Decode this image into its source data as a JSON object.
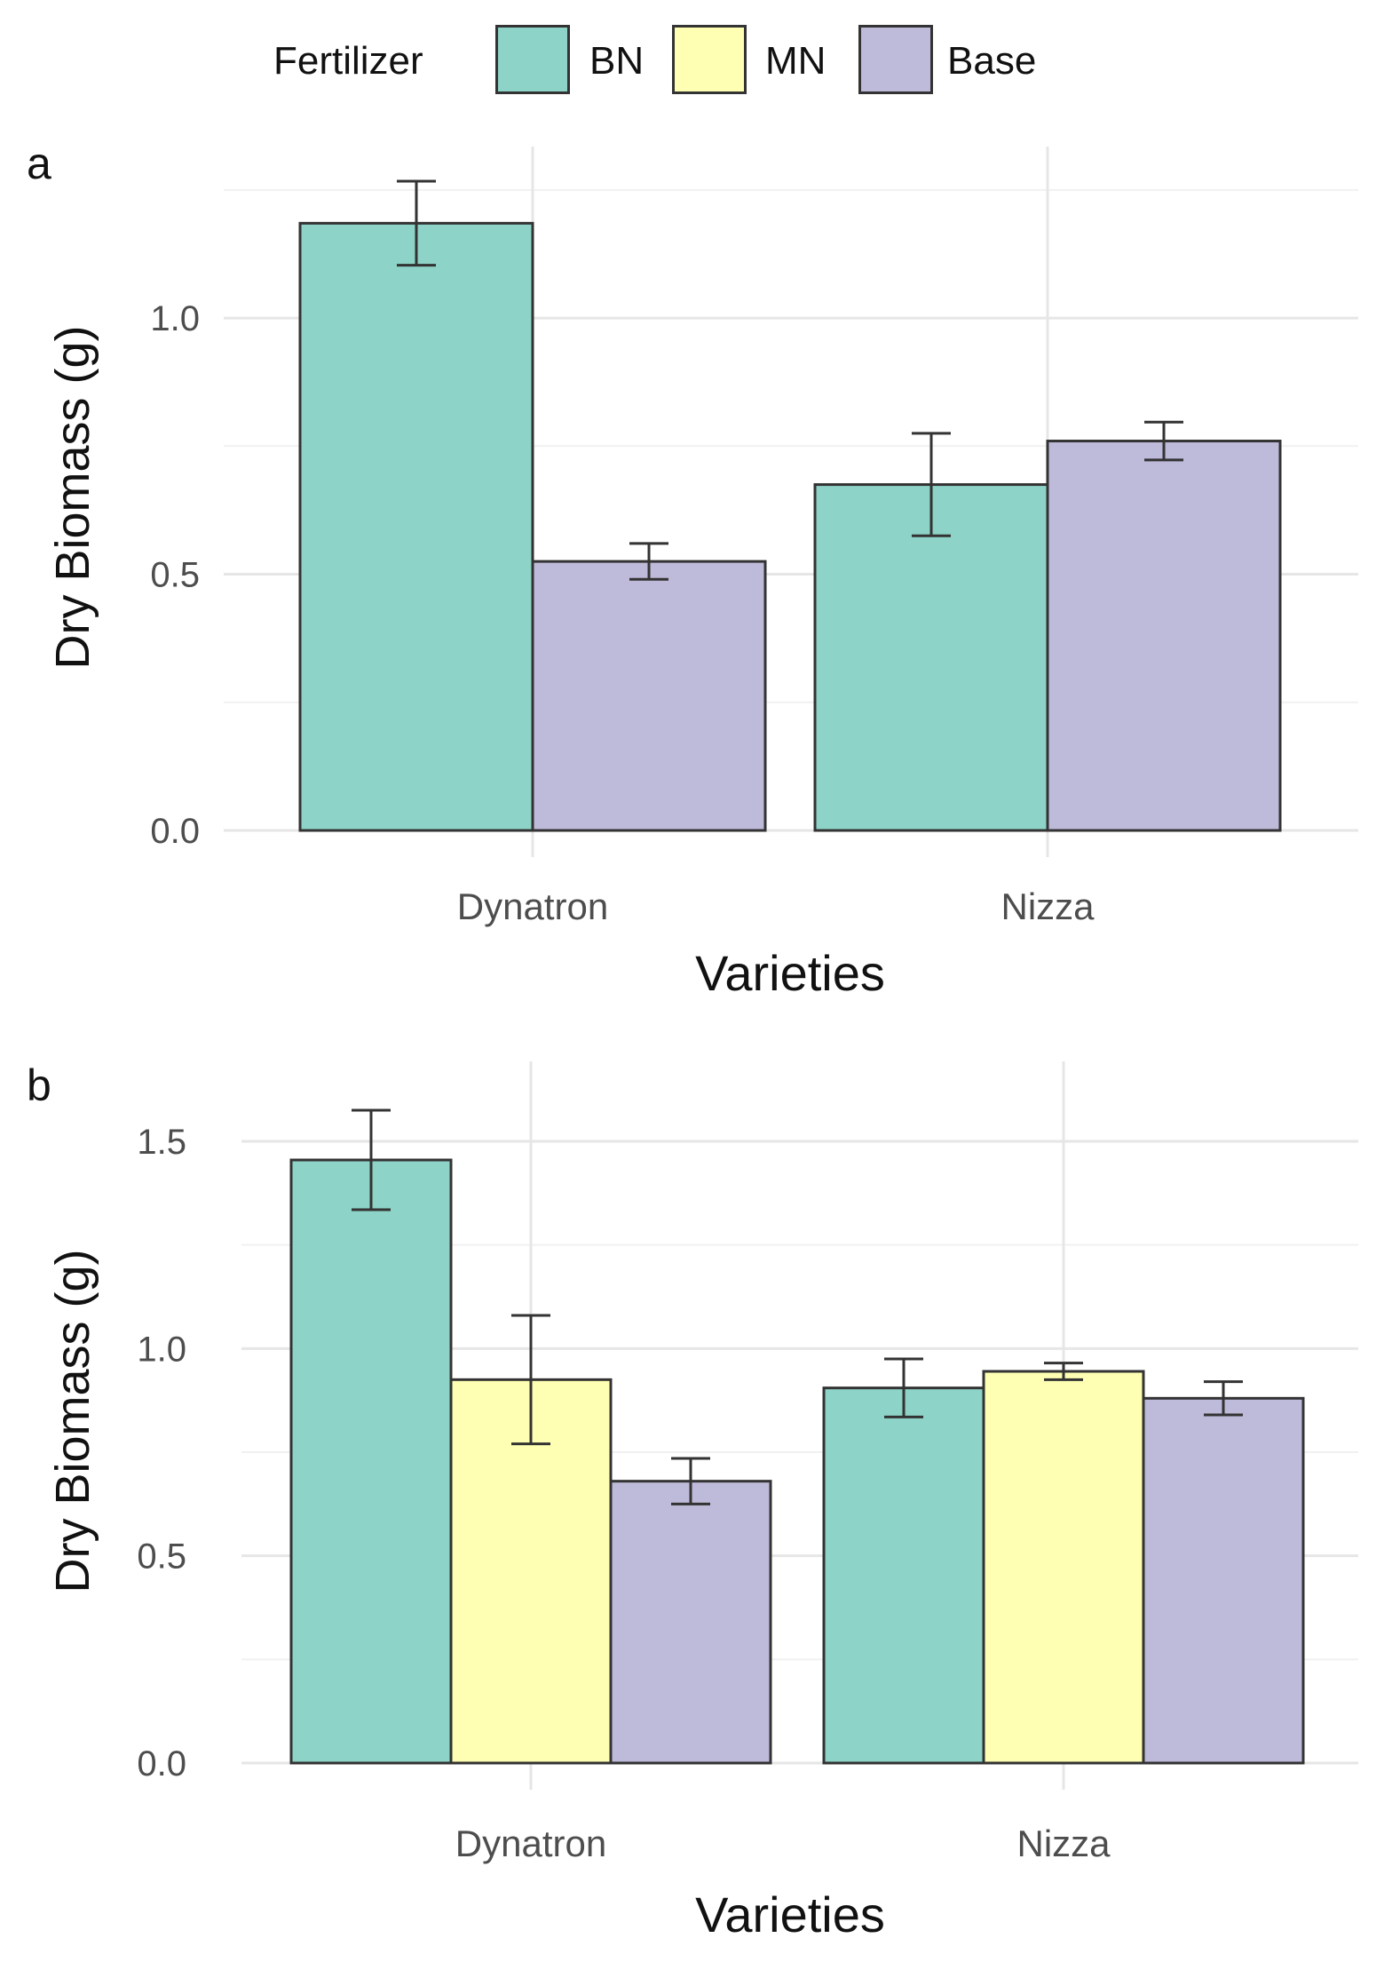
{
  "legend": {
    "title": "Fertilizer",
    "items": [
      {
        "label": "BN",
        "color": "#8dd3c7"
      },
      {
        "label": "MN",
        "color": "#ffffb3"
      },
      {
        "label": "Base",
        "color": "#bebada"
      }
    ]
  },
  "chart_data": [
    {
      "panel": "a",
      "type": "bar",
      "xlabel": "Varieties",
      "ylabel": "Dry Biomass (g)",
      "ylim": [
        0,
        1.3
      ],
      "yticks": [
        0.0,
        0.5,
        1.0
      ],
      "ytick_labels": [
        "0.0",
        "0.5",
        "1.0"
      ],
      "categories": [
        "Dynatron",
        "Nizza"
      ],
      "series": [
        {
          "name": "BN",
          "values": [
            1.185,
            0.675
          ],
          "errors": [
            0.082,
            0.1
          ]
        },
        {
          "name": "Base",
          "values": [
            0.525,
            0.76
          ],
          "errors": [
            0.035,
            0.037
          ]
        }
      ]
    },
    {
      "panel": "b",
      "type": "bar",
      "xlabel": "Varieties",
      "ylabel": "Dry Biomass (g)",
      "ylim": [
        0,
        1.65
      ],
      "yticks": [
        0.0,
        0.5,
        1.0,
        1.5
      ],
      "ytick_labels": [
        "0.0",
        "0.5",
        "1.0",
        "1.5"
      ],
      "categories": [
        "Dynatron",
        "Nizza"
      ],
      "series": [
        {
          "name": "BN",
          "values": [
            1.455,
            0.905
          ],
          "errors": [
            0.12,
            0.07
          ]
        },
        {
          "name": "MN",
          "values": [
            0.925,
            0.945
          ],
          "errors": [
            0.155,
            0.02
          ]
        },
        {
          "name": "Base",
          "values": [
            0.68,
            0.88
          ],
          "errors": [
            0.055,
            0.04
          ]
        }
      ]
    }
  ]
}
